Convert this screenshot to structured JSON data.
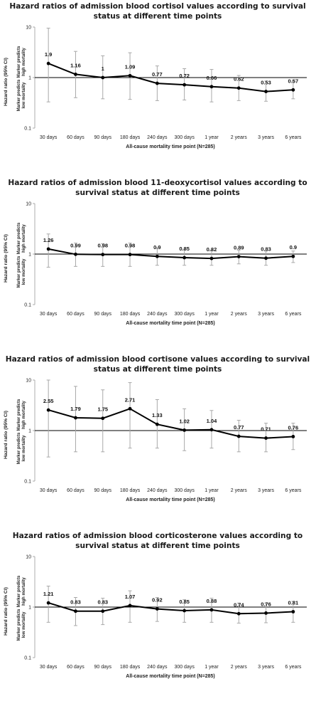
{
  "chart_data": [
    {
      "type": "line",
      "title_lines": [
        "Hazard ratios of admission blood cortisol values according to survival",
        "status at different time points"
      ],
      "xlabel": "All-cause mortality time point (N=285)",
      "ylabel": "Hazard ratio (95% CI)",
      "upper_note": [
        "Marker predicts",
        "high mortality"
      ],
      "lower_note": [
        "Marker predicts",
        "low mortality"
      ],
      "yscale": "log",
      "ylim": [
        0.1,
        10
      ],
      "yticks": [
        "10",
        "1",
        "0.1"
      ],
      "reference_line": 1,
      "categories": [
        "30 days",
        "60 days",
        "90 days",
        "180 days",
        "240 days",
        "300 days",
        "1 year",
        "2 years",
        "3 years",
        "6 years"
      ],
      "values": [
        1.9,
        1.16,
        1,
        1.09,
        0.77,
        0.72,
        0.66,
        0.62,
        0.53,
        0.57
      ],
      "value_labels": [
        "1.9",
        "1.16",
        "1",
        "1.09",
        "0.77",
        "0.72",
        "0.66",
        "0.62",
        "0.53",
        "0.57"
      ],
      "ci_lower": [
        0.33,
        0.4,
        0.38,
        0.37,
        0.35,
        0.36,
        0.33,
        0.35,
        0.34,
        0.38
      ],
      "ci_upper": [
        9.5,
        3.3,
        2.7,
        3.1,
        1.7,
        1.5,
        1.45,
        1.1,
        0.85,
        0.85
      ]
    },
    {
      "type": "line",
      "title_lines": [
        "Hazard ratios of admission blood 11-deoxycortisol values according to",
        "survival status at different time points"
      ],
      "xlabel": "All-cause mortality time point (N=285)",
      "ylabel": "Hazard ratio (95% CI)",
      "upper_note": [
        "Marker predicts",
        "high mortality"
      ],
      "lower_note": [
        "Marker predicts",
        "low mortality"
      ],
      "yscale": "log",
      "ylim": [
        0.1,
        10
      ],
      "yticks": [
        "10",
        "1",
        "0.1"
      ],
      "reference_line": 1,
      "categories": [
        "30 days",
        "60 days",
        "90 days",
        "180 days",
        "240 days",
        "300 days",
        "1 year",
        "2 years",
        "3 years",
        "6 years"
      ],
      "values": [
        1.26,
        0.99,
        0.98,
        0.98,
        0.9,
        0.85,
        0.82,
        0.89,
        0.83,
        0.9
      ],
      "value_labels": [
        "1.26",
        "0.99",
        "0.98",
        "0.98",
        "0.9",
        "0.85",
        "0.82",
        "0.89",
        "0.83",
        "0.9"
      ],
      "ci_lower": [
        0.55,
        0.57,
        0.57,
        0.57,
        0.6,
        0.6,
        0.6,
        0.64,
        0.6,
        0.68
      ],
      "ci_upper": [
        2.5,
        1.65,
        1.6,
        1.65,
        1.35,
        1.25,
        1.2,
        1.2,
        1.15,
        1.15
      ]
    },
    {
      "type": "line",
      "title_lines": [
        "Hazard ratios of admission blood cortisone values according to survival",
        "status at different time points"
      ],
      "xlabel": "All-cause mortality time point (N=285)",
      "ylabel": "Hazard ratio (95% CI)",
      "upper_note": [
        "Marker predicts",
        "high mortality"
      ],
      "lower_note": [
        "Marker predicts",
        "low mortality"
      ],
      "yscale": "log",
      "ylim": [
        0.1,
        10
      ],
      "yticks": [
        "10",
        "1",
        "0.1"
      ],
      "reference_line": 1,
      "categories": [
        "30 days",
        "60 days",
        "90 days",
        "180 days",
        "240 days",
        "300 days",
        "1 year",
        "2 years",
        "3 years",
        "6 years"
      ],
      "values": [
        2.55,
        1.79,
        1.75,
        2.71,
        1.33,
        1.02,
        1.04,
        0.77,
        0.71,
        0.76
      ],
      "value_labels": [
        "2.55",
        "1.79",
        "1.75",
        "2.71",
        "1.33",
        "1.02",
        "1.04",
        "0.77",
        "0.71",
        "0.76"
      ],
      "ci_lower": [
        0.3,
        0.38,
        0.38,
        0.45,
        0.45,
        0.4,
        0.45,
        0.38,
        0.38,
        0.42
      ],
      "ci_upper": [
        10,
        7.5,
        6.4,
        8.9,
        4.1,
        2.7,
        2.5,
        1.6,
        1.4,
        1.4
      ]
    },
    {
      "type": "line",
      "title_lines": [
        "Hazard ratios of admission blood corticosterone values according to",
        "survival status at different time points"
      ],
      "xlabel": "All-cause mortality time point (N=285)",
      "ylabel": "Hazard ratio (95% CI)",
      "upper_note": [
        "Marker predicts",
        "high mortality"
      ],
      "lower_note": [
        "Marker predicts",
        "low mortality"
      ],
      "yscale": "log",
      "ylim": [
        0.1,
        10
      ],
      "yticks": [
        "10",
        "1",
        "0.1"
      ],
      "reference_line": 1,
      "categories": [
        "30 days",
        "60 days",
        "90 days",
        "180 days",
        "240 days",
        "300 days",
        "1 year",
        "2 years",
        "3 years",
        "6 years"
      ],
      "values": [
        1.21,
        0.83,
        0.83,
        1.07,
        0.92,
        0.85,
        0.88,
        0.74,
        0.76,
        0.81
      ],
      "value_labels": [
        "1.21",
        "0.83",
        "0.83",
        "1.07",
        "0.92",
        "0.85",
        "0.88",
        "0.74",
        "0.76",
        "0.81"
      ],
      "ci_lower": [
        0.5,
        0.43,
        0.45,
        0.5,
        0.52,
        0.5,
        0.5,
        0.48,
        0.49,
        0.5
      ],
      "ci_upper": [
        2.6,
        1.55,
        1.5,
        2.1,
        1.55,
        1.4,
        1.5,
        1.2,
        1.2,
        1.3
      ]
    }
  ]
}
